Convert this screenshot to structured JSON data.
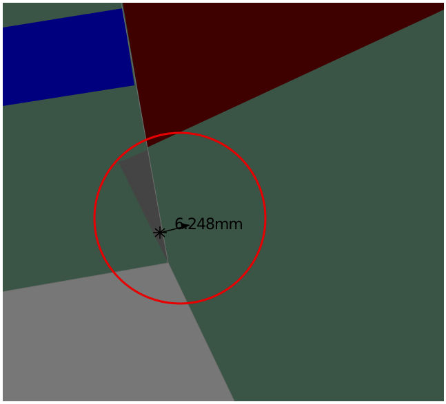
{
  "viewport": {
    "title": ""
  },
  "colors": {
    "background": "#ffffff",
    "panel_green": "#3a5446",
    "panel_blue": "#00007f",
    "panel_red": "#3f0000",
    "sliver_gray": "#444444",
    "floor_gray": "#777777",
    "edge_gray": "#6f6f6f",
    "highlight_circle": "#e60000",
    "annotation": "#000000"
  },
  "measurement": {
    "label": "6.248mm",
    "value": 6.248,
    "unit": "mm"
  }
}
